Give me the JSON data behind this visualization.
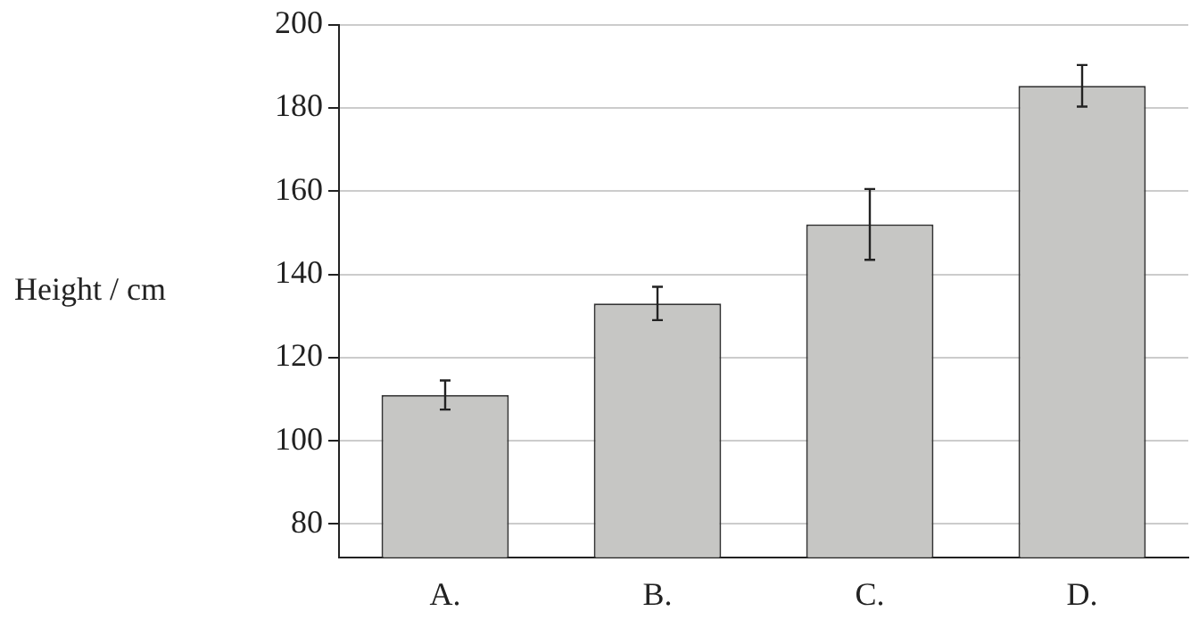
{
  "chart_data": {
    "type": "bar",
    "ylabel": "Height / cm",
    "categories": [
      "A.",
      "B.",
      "C.",
      "D."
    ],
    "values": [
      111,
      133,
      152,
      185.3
    ],
    "errors": [
      3.5,
      4,
      8.5,
      5
    ],
    "color": "#c6c6c4",
    "ylim": [
      72,
      200
    ],
    "yticks": [
      80,
      100,
      120,
      140,
      160,
      180,
      200
    ],
    "grid": "y"
  }
}
